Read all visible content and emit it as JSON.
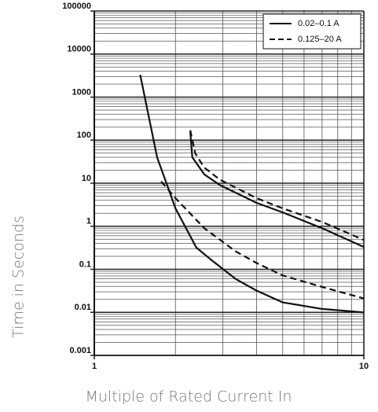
{
  "chart_data": {
    "type": "line",
    "x_label": "Multiple of Rated Current In",
    "y_label": "Time in Seconds",
    "log_x": true,
    "log_y": true,
    "grid": true,
    "xlim": [
      1,
      10
    ],
    "xticks": [
      1,
      10
    ],
    "ylim": [
      0.001,
      100000
    ],
    "yticks": [
      100000,
      10000,
      1000,
      100,
      10,
      1,
      0.1,
      0.01,
      0.001
    ],
    "legend_position": "upper right",
    "series": [
      {
        "name": "0.02–0.1 A",
        "color": "#111111",
        "dashed": false,
        "curves": [
          {
            "x": [
              1.48,
              1.71,
              2,
              2.39,
              2.7,
              3.35,
              4,
              5,
              7,
              10
            ],
            "y": [
              3300,
              40,
              2.6,
              0.32,
              0.17,
              0.059,
              0.032,
              0.017,
              0.012,
              0.01
            ]
          },
          {
            "x": [
              2.27,
              2.31,
              2.56,
              2.93,
              4,
              5,
              7,
              10
            ],
            "y": [
              155,
              40,
              16,
              9,
              3.5,
              2.1,
              0.9,
              0.33
            ]
          }
        ]
      },
      {
        "name": "0.125–20 A",
        "color": "#111111",
        "dashed": true,
        "curves": [
          {
            "x": [
              1.77,
              2,
              2.56,
              3.35,
              4,
              5,
              7,
              10
            ],
            "y": [
              11,
              4.5,
              0.9,
              0.26,
              0.14,
              0.072,
              0.039,
              0.021
            ]
          },
          {
            "x": [
              2.27,
              2.37,
              2.56,
              2.93,
              4,
              5,
              7,
              10
            ],
            "y": [
              170,
              49,
              23,
              12,
              4.5,
              2.6,
              1.26,
              0.48
            ]
          }
        ]
      }
    ]
  }
}
